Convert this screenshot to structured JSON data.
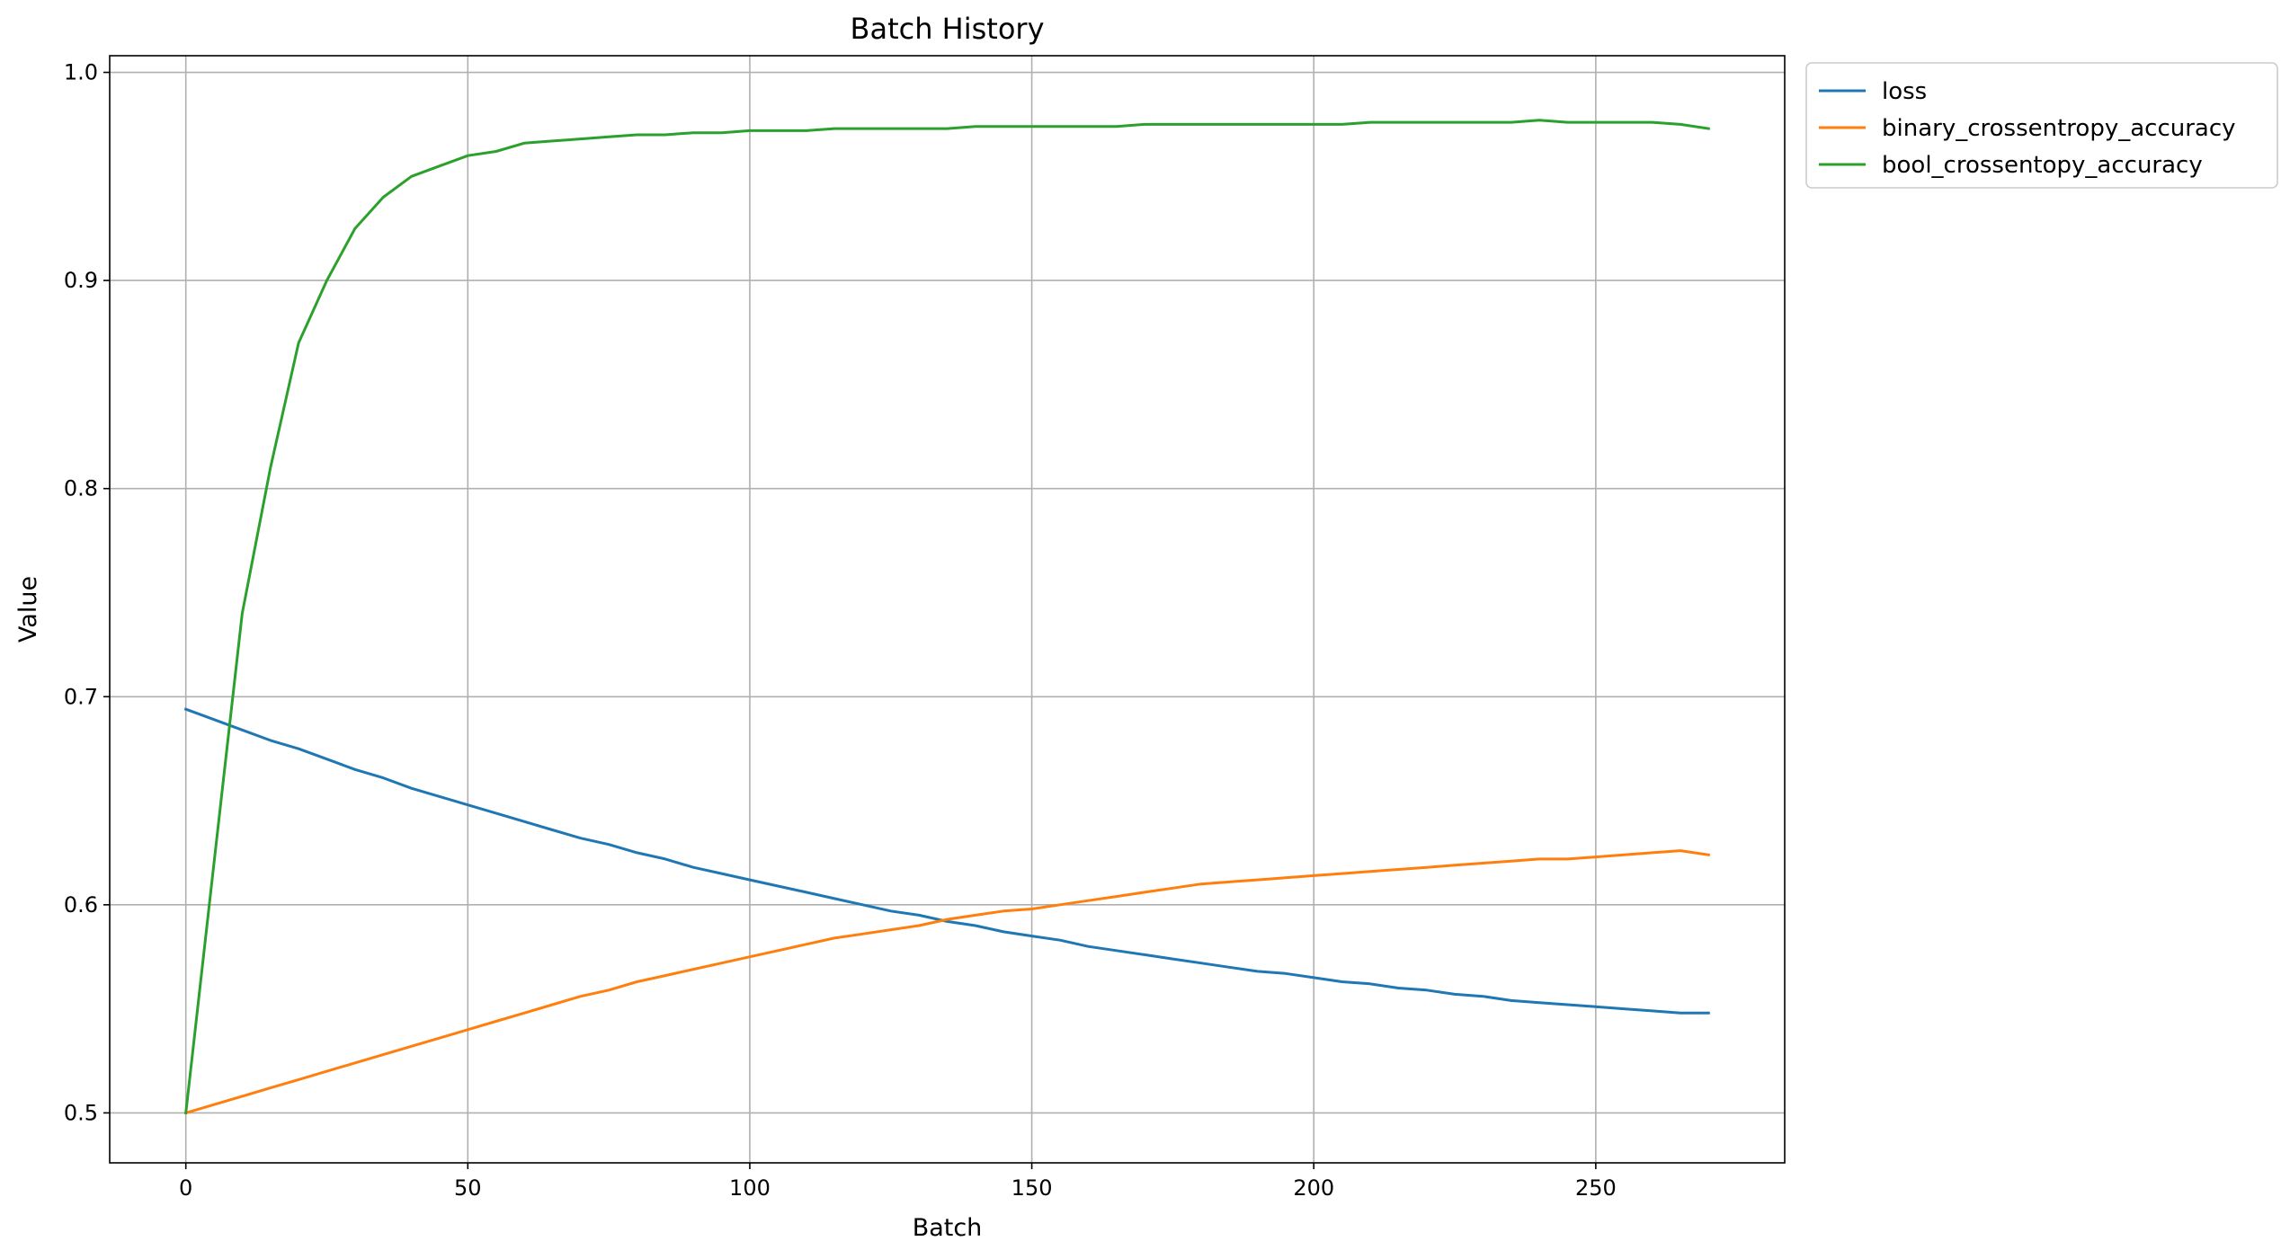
{
  "chart_data": {
    "type": "line",
    "title": "Batch History",
    "xlabel": "Batch",
    "ylabel": "Value",
    "xlim": [
      -13.5,
      283.5
    ],
    "ylim": [
      0.476,
      1.008
    ],
    "xticks": [
      0,
      50,
      100,
      150,
      200,
      250
    ],
    "xtick_labels": [
      "0",
      "50",
      "100",
      "150",
      "200",
      "250"
    ],
    "yticks": [
      0.5,
      0.6,
      0.7,
      0.8,
      0.9,
      1.0
    ],
    "ytick_labels": [
      "0.5",
      "0.6",
      "0.7",
      "0.8",
      "0.9",
      "1.0"
    ],
    "grid": true,
    "legend": "outside upper right",
    "x": [
      0,
      5,
      10,
      15,
      20,
      25,
      30,
      35,
      40,
      45,
      50,
      55,
      60,
      65,
      70,
      75,
      80,
      85,
      90,
      95,
      100,
      105,
      110,
      115,
      120,
      125,
      130,
      135,
      140,
      145,
      150,
      155,
      160,
      165,
      170,
      175,
      180,
      185,
      190,
      195,
      200,
      205,
      210,
      215,
      220,
      225,
      230,
      235,
      240,
      245,
      250,
      255,
      260,
      265,
      270
    ],
    "series": [
      {
        "name": "loss",
        "color": "#1f77b4",
        "values": [
          0.694,
          0.689,
          0.684,
          0.679,
          0.675,
          0.67,
          0.665,
          0.661,
          0.656,
          0.652,
          0.648,
          0.644,
          0.64,
          0.636,
          0.632,
          0.629,
          0.625,
          0.622,
          0.618,
          0.615,
          0.612,
          0.609,
          0.606,
          0.603,
          0.6,
          0.597,
          0.595,
          0.592,
          0.59,
          0.587,
          0.585,
          0.583,
          0.58,
          0.578,
          0.576,
          0.574,
          0.572,
          0.57,
          0.568,
          0.567,
          0.565,
          0.563,
          0.562,
          0.56,
          0.559,
          0.557,
          0.556,
          0.554,
          0.553,
          0.552,
          0.551,
          0.55,
          0.549,
          0.548,
          0.548
        ]
      },
      {
        "name": "binary_crossentropy_accuracy",
        "color": "#ff7f0e",
        "values": [
          0.5,
          0.504,
          0.508,
          0.512,
          0.516,
          0.52,
          0.524,
          0.528,
          0.532,
          0.536,
          0.54,
          0.544,
          0.548,
          0.552,
          0.556,
          0.559,
          0.563,
          0.566,
          0.569,
          0.572,
          0.575,
          0.578,
          0.581,
          0.584,
          0.586,
          0.588,
          0.59,
          0.593,
          0.595,
          0.597,
          0.598,
          0.6,
          0.602,
          0.604,
          0.606,
          0.608,
          0.61,
          0.611,
          0.612,
          0.613,
          0.614,
          0.615,
          0.616,
          0.617,
          0.618,
          0.619,
          0.62,
          0.621,
          0.622,
          0.622,
          0.623,
          0.624,
          0.625,
          0.626,
          0.624
        ]
      },
      {
        "name": "bool_crossentopy_accuracy",
        "color": "#2ca02c",
        "values": [
          0.5,
          0.62,
          0.74,
          0.81,
          0.87,
          0.9,
          0.925,
          0.94,
          0.95,
          0.955,
          0.96,
          0.962,
          0.966,
          0.967,
          0.968,
          0.969,
          0.97,
          0.97,
          0.971,
          0.971,
          0.972,
          0.972,
          0.972,
          0.973,
          0.973,
          0.973,
          0.973,
          0.973,
          0.974,
          0.974,
          0.974,
          0.974,
          0.974,
          0.974,
          0.975,
          0.975,
          0.975,
          0.975,
          0.975,
          0.975,
          0.975,
          0.975,
          0.976,
          0.976,
          0.976,
          0.976,
          0.976,
          0.976,
          0.977,
          0.976,
          0.976,
          0.976,
          0.976,
          0.975,
          0.973
        ]
      }
    ]
  }
}
